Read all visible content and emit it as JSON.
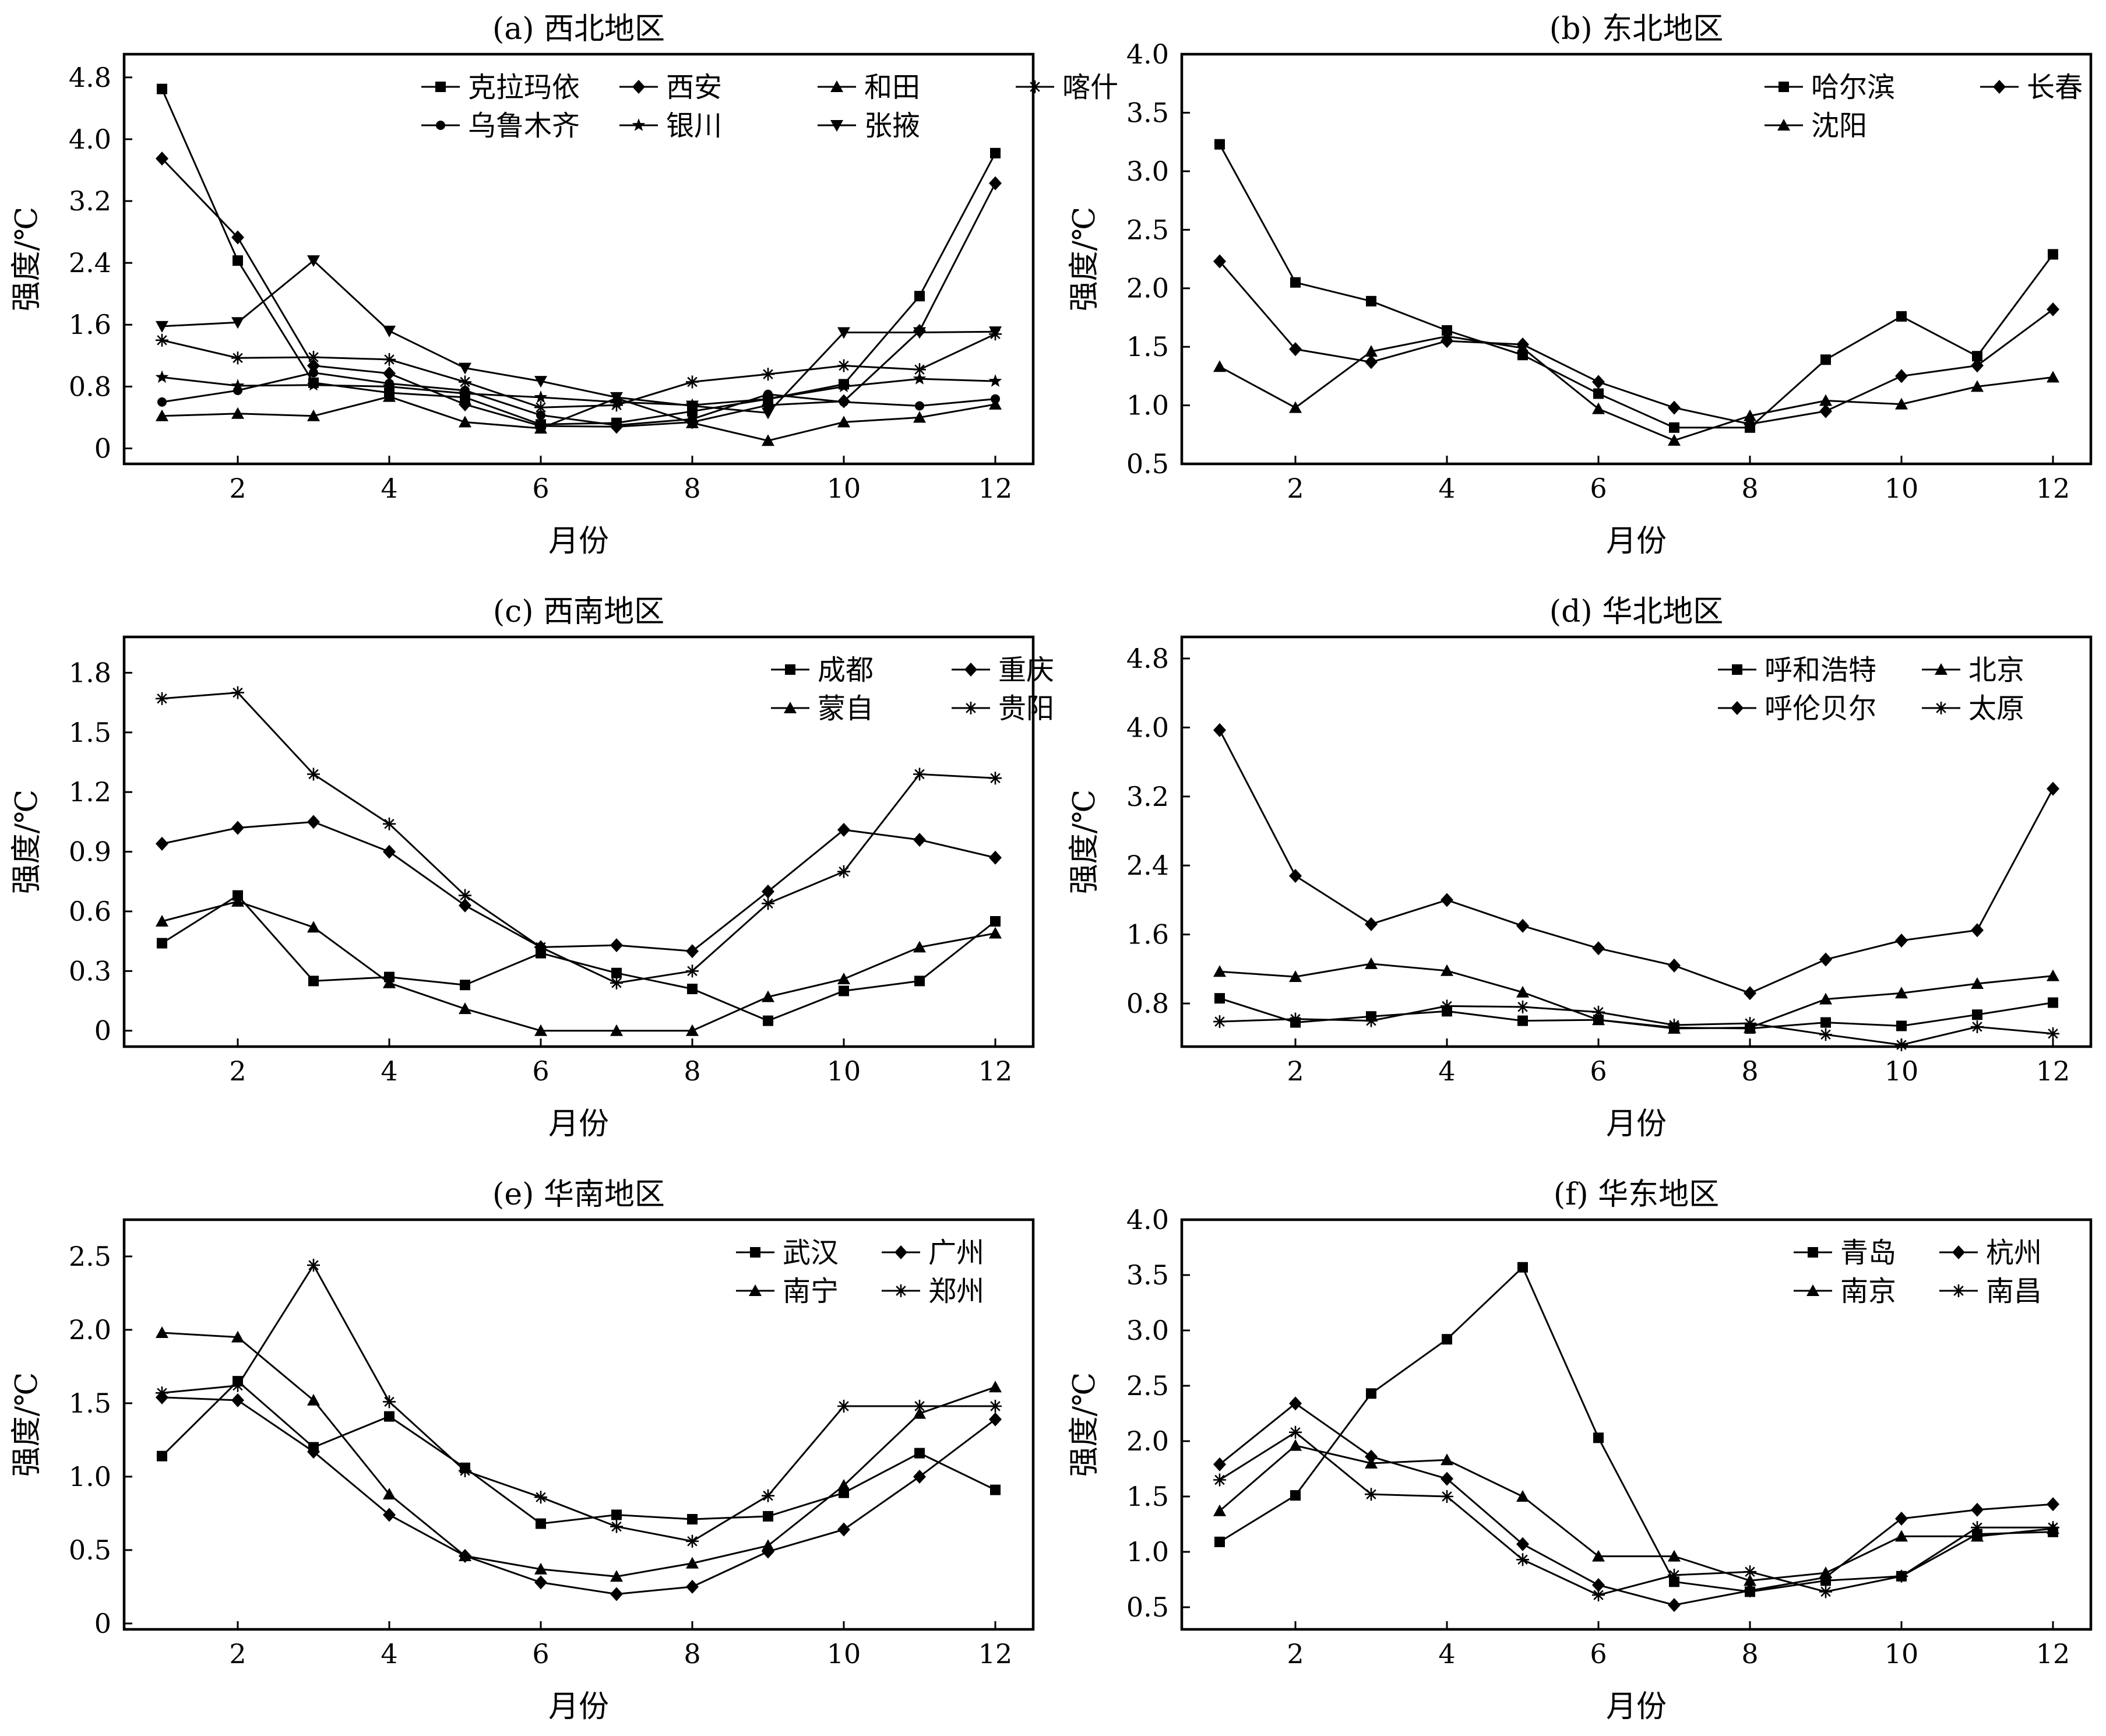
{
  "figure": {
    "background": "#ffffff",
    "line_color": "#000000"
  },
  "chart_data": [
    {
      "type": "line",
      "title": "(a) 西北地区",
      "xlabel": "月份",
      "ylabel": "强度/℃",
      "xlim": [
        0.5,
        12.5
      ],
      "ylim": [
        -0.2,
        5.1
      ],
      "xticks": [
        2,
        4,
        6,
        8,
        10,
        12
      ],
      "yticks": [
        0,
        0.8,
        1.6,
        2.4,
        3.2,
        4.0,
        4.8
      ],
      "ytick_labels": [
        "0",
        "0.8",
        "1.6",
        "2.4",
        "3.2",
        "4.0",
        "4.8"
      ],
      "x": [
        1,
        2,
        3,
        4,
        5,
        6,
        7,
        8,
        9,
        10,
        11,
        12
      ],
      "legend_position": "top-right",
      "series": [
        {
          "name": "克拉玛依",
          "marker": "square",
          "values": [
            4.65,
            2.43,
            0.85,
            0.72,
            0.66,
            0.31,
            0.33,
            0.48,
            0.64,
            0.83,
            1.97,
            3.82
          ]
        },
        {
          "name": "西安",
          "marker": "diamond",
          "values": [
            3.75,
            2.73,
            1.07,
            0.97,
            0.57,
            0.29,
            0.28,
            0.34,
            0.56,
            0.61,
            1.52,
            3.43
          ]
        },
        {
          "name": "和田",
          "marker": "triangle",
          "values": [
            0.42,
            0.45,
            0.42,
            0.67,
            0.34,
            0.26,
            0.65,
            0.33,
            0.1,
            0.34,
            0.4,
            0.57
          ]
        },
        {
          "name": "喀什",
          "marker": "asterisk",
          "values": [
            1.4,
            1.17,
            1.18,
            1.15,
            0.86,
            0.53,
            0.56,
            0.86,
            0.96,
            1.07,
            1.02,
            1.48
          ]
        },
        {
          "name": "乌鲁木齐",
          "marker": "circle",
          "values": [
            0.6,
            0.75,
            0.98,
            0.84,
            0.75,
            0.43,
            0.3,
            0.38,
            0.7,
            0.6,
            0.55,
            0.64
          ]
        },
        {
          "name": "银川",
          "marker": "star",
          "values": [
            0.92,
            0.81,
            0.82,
            0.8,
            0.71,
            0.66,
            0.6,
            0.56,
            0.64,
            0.8,
            0.9,
            0.87
          ]
        },
        {
          "name": "张掖",
          "marker": "triangle-down",
          "values": [
            1.58,
            1.63,
            2.43,
            1.52,
            1.04,
            0.87,
            0.66,
            0.55,
            0.46,
            1.5,
            1.5,
            1.51
          ]
        }
      ]
    },
    {
      "type": "line",
      "title": "(b) 东北地区",
      "xlabel": "月份",
      "ylabel": "强度/℃",
      "xlim": [
        0.5,
        12.5
      ],
      "ylim": [
        0.5,
        4.0
      ],
      "xticks": [
        2,
        4,
        6,
        8,
        10,
        12
      ],
      "yticks": [
        0.5,
        1.0,
        1.5,
        2.0,
        2.5,
        3.0,
        3.5,
        4.0
      ],
      "ytick_labels": [
        "0.5",
        "1.0",
        "1.5",
        "2.0",
        "2.5",
        "3.0",
        "3.5",
        "4.0"
      ],
      "x": [
        1,
        2,
        3,
        4,
        5,
        6,
        7,
        8,
        9,
        10,
        11,
        12
      ],
      "legend_position": "top-right",
      "series": [
        {
          "name": "哈尔滨",
          "marker": "square",
          "values": [
            3.23,
            2.05,
            1.89,
            1.64,
            1.43,
            1.1,
            0.81,
            0.81,
            1.39,
            1.76,
            1.42,
            2.29
          ]
        },
        {
          "name": "长春",
          "marker": "diamond",
          "values": [
            2.23,
            1.48,
            1.37,
            1.55,
            1.52,
            1.2,
            0.98,
            0.84,
            0.95,
            1.25,
            1.34,
            1.82
          ]
        },
        {
          "name": "沈阳",
          "marker": "triangle",
          "values": [
            1.33,
            0.98,
            1.46,
            1.59,
            1.49,
            0.97,
            0.7,
            0.91,
            1.04,
            1.01,
            1.16,
            1.24
          ]
        }
      ]
    },
    {
      "type": "line",
      "title": "(c) 西南地区",
      "xlabel": "月份",
      "ylabel": "强度/℃",
      "xlim": [
        0.5,
        12.5
      ],
      "ylim": [
        -0.08,
        1.98
      ],
      "xticks": [
        2,
        4,
        6,
        8,
        10,
        12
      ],
      "yticks": [
        0,
        0.3,
        0.6,
        0.9,
        1.2,
        1.5,
        1.8
      ],
      "ytick_labels": [
        "0",
        "0.3",
        "0.6",
        "0.9",
        "1.2",
        "1.5",
        "1.8"
      ],
      "x": [
        1,
        2,
        3,
        4,
        5,
        6,
        7,
        8,
        9,
        10,
        11,
        12
      ],
      "legend_position": "top-right",
      "series": [
        {
          "name": "成都",
          "marker": "square",
          "values": [
            0.44,
            0.68,
            0.25,
            0.27,
            0.23,
            0.39,
            0.29,
            0.21,
            0.05,
            0.2,
            0.25,
            0.55
          ]
        },
        {
          "name": "重庆",
          "marker": "diamond",
          "values": [
            0.94,
            1.02,
            1.05,
            0.9,
            0.63,
            0.42,
            0.43,
            0.4,
            0.7,
            1.01,
            0.96,
            0.87
          ]
        },
        {
          "name": "蒙自",
          "marker": "triangle",
          "values": [
            0.55,
            0.65,
            0.52,
            0.24,
            0.11,
            0.0,
            0.0,
            0.0,
            0.17,
            0.26,
            0.42,
            0.49
          ]
        },
        {
          "name": "贵阳",
          "marker": "asterisk",
          "values": [
            1.67,
            1.7,
            1.29,
            1.04,
            0.68,
            0.42,
            0.24,
            0.3,
            0.64,
            0.8,
            1.29,
            1.27
          ]
        }
      ]
    },
    {
      "type": "line",
      "title": "(d) 华北地区",
      "xlabel": "月份",
      "ylabel": "强度/℃",
      "xlim": [
        0.5,
        12.5
      ],
      "ylim": [
        0.3,
        5.05
      ],
      "xticks": [
        2,
        4,
        6,
        8,
        10,
        12
      ],
      "yticks": [
        0.8,
        1.6,
        2.4,
        3.2,
        4.0,
        4.8
      ],
      "ytick_labels": [
        "0.8",
        "1.6",
        "2.4",
        "3.2",
        "4.0",
        "4.8"
      ],
      "x": [
        1,
        2,
        3,
        4,
        5,
        6,
        7,
        8,
        9,
        10,
        11,
        12
      ],
      "legend_position": "top-right",
      "series": [
        {
          "name": "呼和浩特",
          "marker": "square",
          "values": [
            0.86,
            0.58,
            0.65,
            0.71,
            0.6,
            0.61,
            0.52,
            0.51,
            0.58,
            0.54,
            0.67,
            0.81
          ]
        },
        {
          "name": "北京",
          "marker": "triangle",
          "values": [
            1.17,
            1.11,
            1.26,
            1.18,
            0.93,
            0.61,
            0.51,
            0.52,
            0.85,
            0.92,
            1.03,
            1.12
          ]
        },
        {
          "name": "呼伦贝尔",
          "marker": "diamond",
          "values": [
            3.97,
            2.28,
            1.72,
            2.0,
            1.7,
            1.44,
            1.24,
            0.92,
            1.31,
            1.53,
            1.65,
            3.29
          ]
        },
        {
          "name": "太原",
          "marker": "asterisk",
          "values": [
            0.59,
            0.62,
            0.6,
            0.77,
            0.76,
            0.7,
            0.55,
            0.57,
            0.44,
            0.32,
            0.53,
            0.45
          ]
        }
      ]
    },
    {
      "type": "line",
      "title": "(e) 华南地区",
      "xlabel": "月份",
      "ylabel": "强度/℃",
      "xlim": [
        0.5,
        12.5
      ],
      "ylim": [
        -0.04,
        2.75
      ],
      "xticks": [
        2,
        4,
        6,
        8,
        10,
        12
      ],
      "yticks": [
        0,
        0.5,
        1.0,
        1.5,
        2.0,
        2.5
      ],
      "ytick_labels": [
        "0",
        "0.5",
        "1.0",
        "1.5",
        "2.0",
        "2.5"
      ],
      "x": [
        1,
        2,
        3,
        4,
        5,
        6,
        7,
        8,
        9,
        10,
        11,
        12
      ],
      "legend_position": "top-right",
      "series": [
        {
          "name": "武汉",
          "marker": "square",
          "values": [
            1.14,
            1.65,
            1.2,
            1.41,
            1.06,
            0.68,
            0.74,
            0.71,
            0.73,
            0.89,
            1.16,
            0.91
          ]
        },
        {
          "name": "广州",
          "marker": "diamond",
          "values": [
            1.54,
            1.52,
            1.17,
            0.74,
            0.46,
            0.28,
            0.2,
            0.25,
            0.49,
            0.64,
            1.0,
            1.39
          ]
        },
        {
          "name": "南宁",
          "marker": "triangle",
          "values": [
            1.98,
            1.95,
            1.52,
            0.88,
            0.46,
            0.37,
            0.32,
            0.41,
            0.53,
            0.94,
            1.43,
            1.61
          ]
        },
        {
          "name": "郑州",
          "marker": "asterisk",
          "values": [
            1.57,
            1.62,
            2.44,
            1.51,
            1.04,
            0.86,
            0.66,
            0.56,
            0.87,
            1.48,
            1.48,
            1.48
          ]
        }
      ]
    },
    {
      "type": "line",
      "title": "(f) 华东地区",
      "xlabel": "月份",
      "ylabel": "强度/℃",
      "xlim": [
        0.5,
        12.5
      ],
      "ylim": [
        0.3,
        4.0
      ],
      "xticks": [
        2,
        4,
        6,
        8,
        10,
        12
      ],
      "yticks": [
        0.5,
        1.0,
        1.5,
        2.0,
        2.5,
        3.0,
        3.5,
        4.0
      ],
      "ytick_labels": [
        "0.5",
        "1.0",
        "1.5",
        "2.0",
        "2.5",
        "3.0",
        "3.5",
        "4.0"
      ],
      "x": [
        1,
        2,
        3,
        4,
        5,
        6,
        7,
        8,
        9,
        10,
        11,
        12
      ],
      "legend_position": "top-right",
      "series": [
        {
          "name": "青岛",
          "marker": "square",
          "values": [
            1.09,
            1.51,
            2.43,
            2.92,
            3.57,
            2.03,
            0.73,
            0.64,
            0.74,
            0.78,
            1.16,
            1.18
          ]
        },
        {
          "name": "杭州",
          "marker": "diamond",
          "values": [
            1.79,
            2.34,
            1.86,
            1.66,
            1.07,
            0.7,
            0.52,
            0.65,
            0.77,
            1.3,
            1.38,
            1.43
          ]
        },
        {
          "name": "南京",
          "marker": "triangle",
          "values": [
            1.37,
            1.96,
            1.8,
            1.83,
            1.5,
            0.96,
            0.96,
            0.74,
            0.81,
            1.14,
            1.14,
            1.21
          ]
        },
        {
          "name": "南昌",
          "marker": "asterisk",
          "values": [
            1.65,
            2.08,
            1.52,
            1.5,
            0.93,
            0.61,
            0.79,
            0.82,
            0.64,
            0.78,
            1.22,
            1.22
          ]
        }
      ]
    }
  ]
}
